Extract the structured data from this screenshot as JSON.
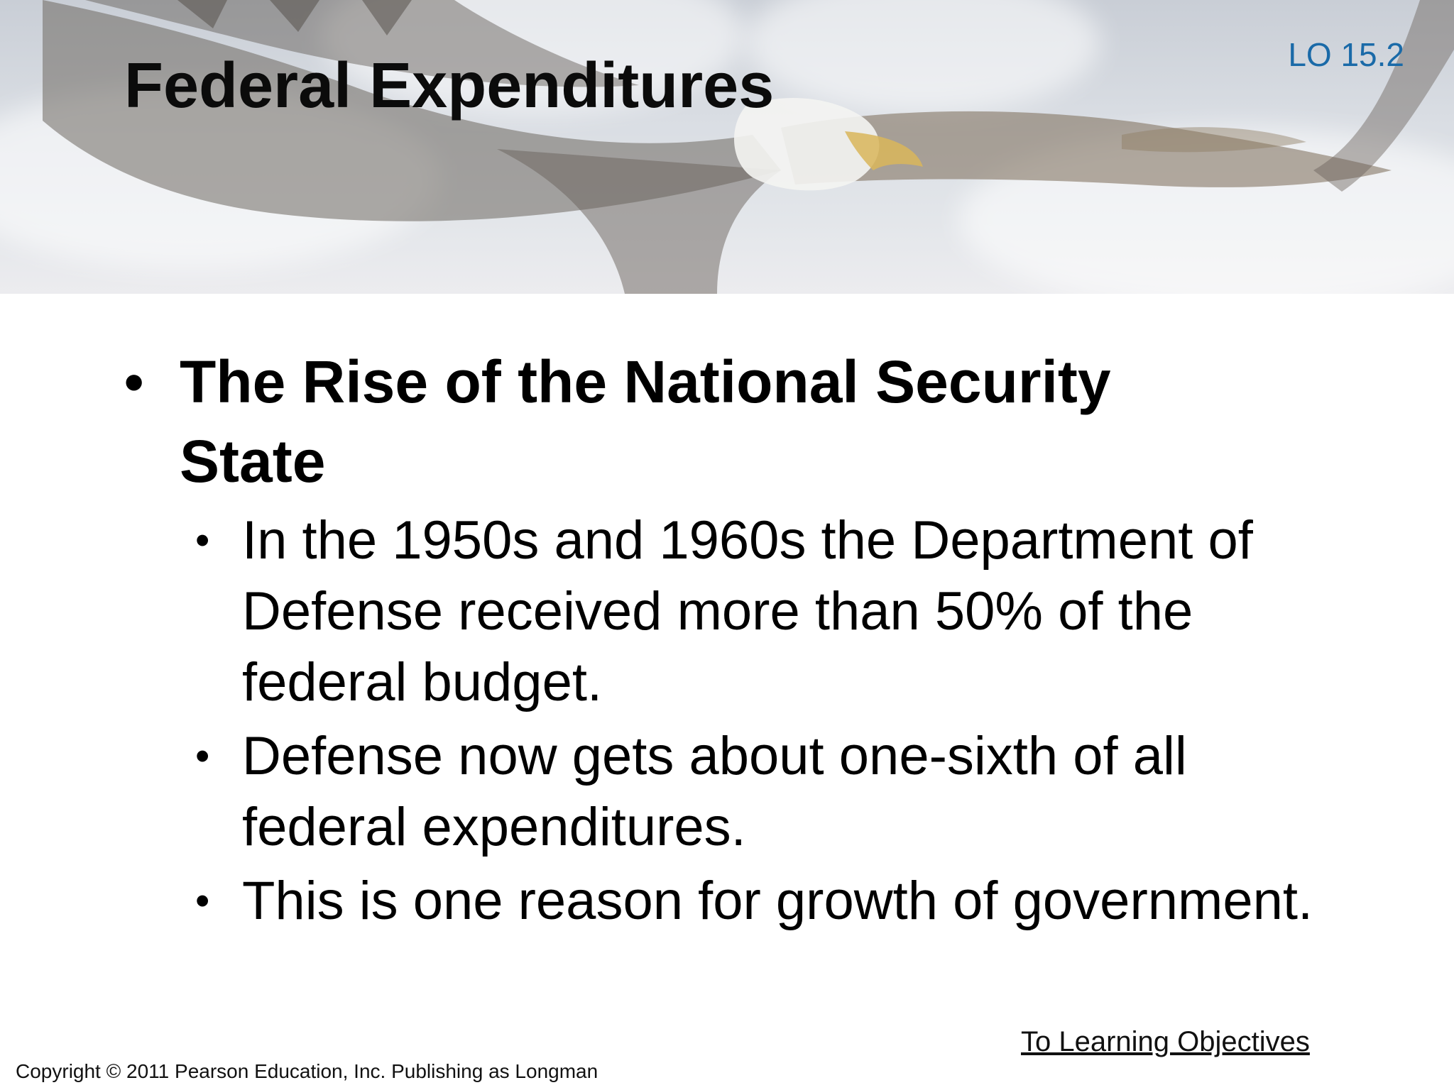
{
  "header": {
    "lo_label": "LO 15.2",
    "title": "Federal Expenditures"
  },
  "content": {
    "main_bullet": "The Rise of the National Security State",
    "sub_bullets": [
      "In the 1950s and 1960s the Department of Defense received more than 50% of the federal budget.",
      "Defense now gets about one-sixth of all federal expenditures.",
      "This is one reason for growth of government."
    ]
  },
  "footer": {
    "objectives_link": "To Learning Objectives",
    "copyright": "Copyright © 2011 Pearson Education, Inc. Publishing as Longman"
  },
  "colors": {
    "lo_label": "#1a6aa8",
    "text": "#000000"
  },
  "icons": {
    "banner_image": "bald-eagle-in-clouds"
  }
}
